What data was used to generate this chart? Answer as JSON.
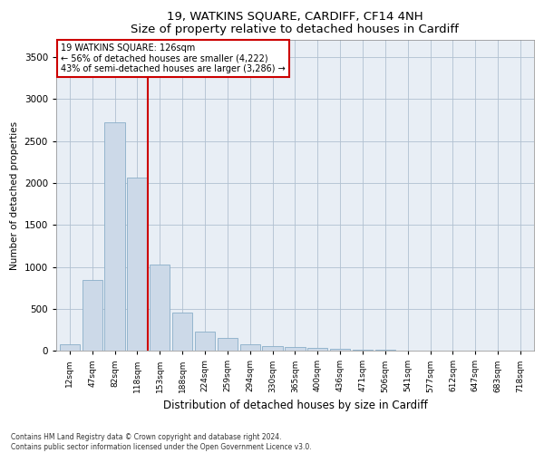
{
  "title": "19, WATKINS SQUARE, CARDIFF, CF14 4NH",
  "subtitle": "Size of property relative to detached houses in Cardiff",
  "xlabel": "Distribution of detached houses by size in Cardiff",
  "ylabel": "Number of detached properties",
  "bar_labels": [
    "12sqm",
    "47sqm",
    "82sqm",
    "118sqm",
    "153sqm",
    "188sqm",
    "224sqm",
    "259sqm",
    "294sqm",
    "330sqm",
    "365sqm",
    "400sqm",
    "436sqm",
    "471sqm",
    "506sqm",
    "541sqm",
    "577sqm",
    "612sqm",
    "647sqm",
    "683sqm",
    "718sqm"
  ],
  "bar_values": [
    75,
    840,
    2720,
    2060,
    1025,
    450,
    225,
    150,
    80,
    55,
    45,
    35,
    25,
    12,
    8,
    5,
    4,
    3,
    2,
    2,
    1
  ],
  "bar_color": "#ccd9e8",
  "bar_edgecolor": "#8aaec8",
  "vline_color": "#cc0000",
  "annotation_title": "19 WATKINS SQUARE: 126sqm",
  "annotation_line1": "← 56% of detached houses are smaller (4,222)",
  "annotation_line2": "43% of semi-detached houses are larger (3,286) →",
  "annotation_box_facecolor": "#ffffff",
  "annotation_box_edgecolor": "#cc0000",
  "ylim": [
    0,
    3700
  ],
  "yticks": [
    0,
    500,
    1000,
    1500,
    2000,
    2500,
    3000,
    3500
  ],
  "footnote1": "Contains HM Land Registry data © Crown copyright and database right 2024.",
  "footnote2": "Contains public sector information licensed under the Open Government Licence v3.0.",
  "bg_color": "#e8eef5",
  "fig_color": "#ffffff"
}
